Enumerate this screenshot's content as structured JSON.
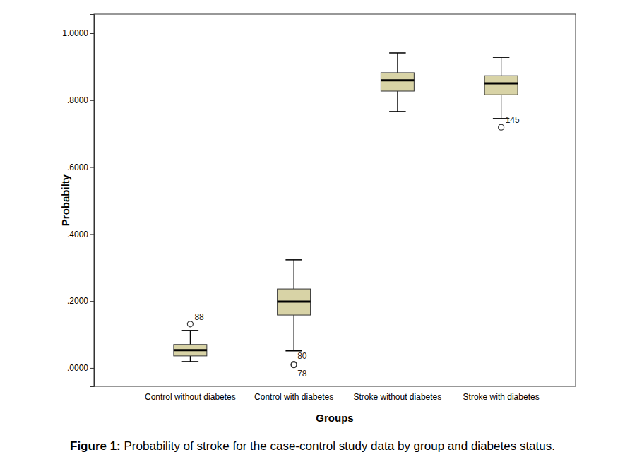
{
  "chart_data": {
    "type": "box",
    "title": "Figure 1: Probability of stroke for the case-control study data by group and diabetes status.",
    "x_label": "Groups",
    "y_label": "Probabilty",
    "categories": [
      "Control without diabetes",
      "Control with diabetes",
      "Stroke without diabetes",
      "Stroke with diabetes"
    ],
    "color": "#d8d3a6",
    "ylim": [
      -0.055,
      1.057
    ],
    "yticks": [
      {
        "value": 0,
        "label": ".0000"
      },
      {
        "value": 0.2,
        "label": ".2000"
      },
      {
        "value": 0.4,
        "label": ".4000"
      },
      {
        "value": 0.6,
        "label": ".6000"
      },
      {
        "value": 0.8,
        "label": ".8000"
      },
      {
        "value": 1.0,
        "label": "1.0000"
      }
    ],
    "boxes": [
      {
        "whisker_low": 0.019,
        "q1": 0.036,
        "median": 0.053,
        "q3": 0.07,
        "whisker_high": 0.112,
        "outliers": [
          {
            "value": 0.131,
            "label": "88"
          }
        ]
      },
      {
        "whisker_low": 0.051,
        "q1": 0.158,
        "median": 0.198,
        "q3": 0.236,
        "whisker_high": 0.323,
        "outliers": [
          {
            "value": 0.011,
            "label": "80"
          },
          {
            "value": 0.009,
            "label": "78"
          }
        ]
      },
      {
        "whisker_low": 0.766,
        "q1": 0.827,
        "median": 0.859,
        "q3": 0.882,
        "whisker_high": 0.941,
        "outliers": []
      },
      {
        "whisker_low": 0.745,
        "q1": 0.816,
        "median": 0.85,
        "q3": 0.873,
        "whisker_high": 0.928,
        "outliers": [
          {
            "value": 0.719,
            "label": "145"
          }
        ]
      }
    ]
  }
}
